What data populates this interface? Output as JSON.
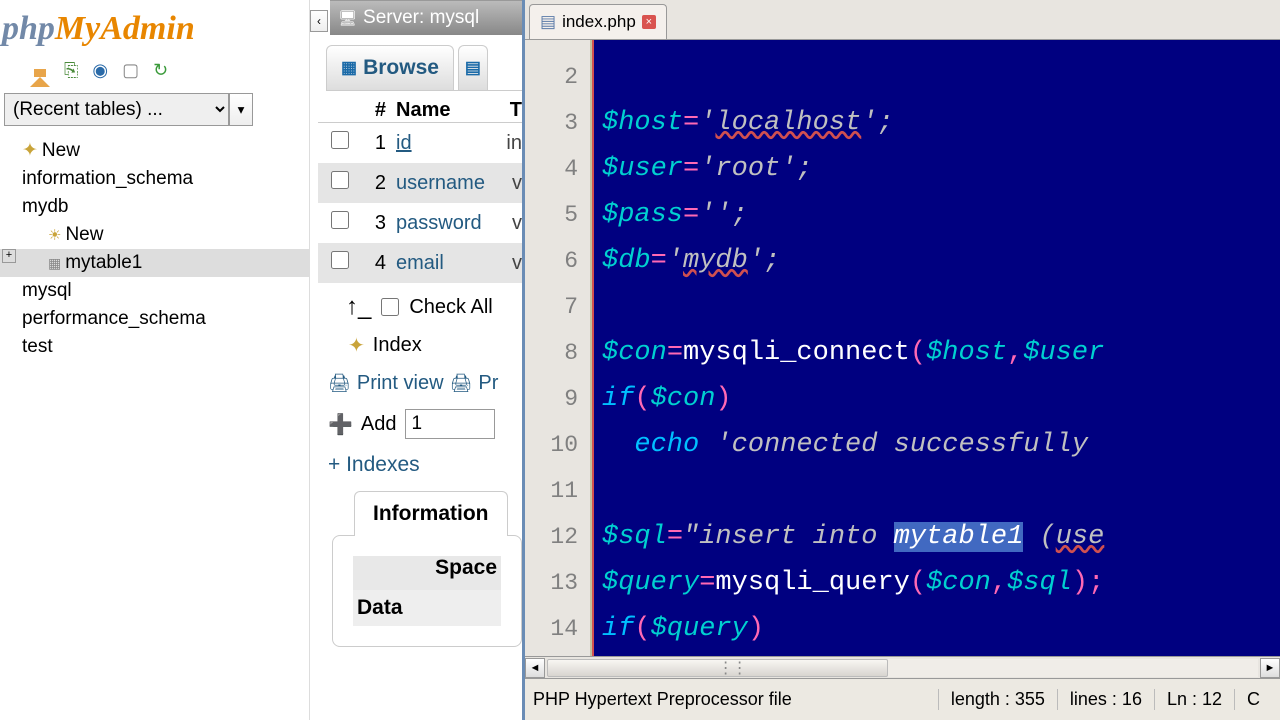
{
  "pma": {
    "logo": {
      "php": "php",
      "my": "My",
      "admin": "Admin"
    },
    "recent_placeholder": "(Recent tables) ...",
    "tree": [
      {
        "label": "New",
        "kind": "new"
      },
      {
        "label": "information_schema"
      },
      {
        "label": "mydb",
        "expanded": true,
        "children": [
          {
            "label": "New",
            "kind": "new"
          },
          {
            "label": "mytable1",
            "selected": true
          }
        ]
      },
      {
        "label": "mysql"
      },
      {
        "label": "performance_schema"
      },
      {
        "label": "test"
      }
    ]
  },
  "main": {
    "server_label": "Server: mysql",
    "tab_browse": "Browse",
    "cols": {
      "num": "#",
      "name": "Name",
      "type": "T"
    },
    "rows": [
      {
        "num": "1",
        "name": "id",
        "type": "in",
        "pk": true
      },
      {
        "num": "2",
        "name": "username",
        "type": "v"
      },
      {
        "num": "3",
        "name": "password",
        "type": "v"
      },
      {
        "num": "4",
        "name": "email",
        "type": "v"
      }
    ],
    "check_all": "Check All",
    "index": "Index",
    "print_view": "Print view",
    "print2": "Pr",
    "add": "Add",
    "add_value": "1",
    "indexes": "+ Indexes",
    "information": "Information",
    "space": "Space",
    "data": "Data"
  },
  "editor": {
    "tab_file": "index.php",
    "gutter": [
      "2",
      "3",
      "4",
      "5",
      "6",
      "7",
      "8",
      "9",
      "10",
      "11",
      "12",
      "13",
      "14"
    ],
    "code_lines": [
      {
        "tokens": []
      },
      {
        "tokens": [
          {
            "t": "$host",
            "c": "var"
          },
          {
            "t": "=",
            "c": "op"
          },
          {
            "t": "'",
            "c": "str"
          },
          {
            "t": "localhost",
            "c": "str str-underline"
          },
          {
            "t": "';",
            "c": "str"
          }
        ]
      },
      {
        "tokens": [
          {
            "t": "$user",
            "c": "var"
          },
          {
            "t": "=",
            "c": "op"
          },
          {
            "t": "'root';",
            "c": "str"
          }
        ]
      },
      {
        "tokens": [
          {
            "t": "$pass",
            "c": "var"
          },
          {
            "t": "=",
            "c": "op"
          },
          {
            "t": "'';",
            "c": "str"
          }
        ]
      },
      {
        "tokens": [
          {
            "t": "$db",
            "c": "var"
          },
          {
            "t": "=",
            "c": "op"
          },
          {
            "t": "'",
            "c": "str"
          },
          {
            "t": "mydb",
            "c": "str str-underline"
          },
          {
            "t": "';",
            "c": "str"
          }
        ]
      },
      {
        "tokens": []
      },
      {
        "tokens": [
          {
            "t": "$con",
            "c": "var"
          },
          {
            "t": "=",
            "c": "op"
          },
          {
            "t": "mysqli_connect",
            "c": "fn"
          },
          {
            "t": "(",
            "c": "op"
          },
          {
            "t": "$host",
            "c": "var"
          },
          {
            "t": ",",
            "c": "op"
          },
          {
            "t": "$user",
            "c": "var"
          }
        ]
      },
      {
        "tokens": [
          {
            "t": "if",
            "c": "kw"
          },
          {
            "t": "(",
            "c": "op"
          },
          {
            "t": "$con",
            "c": "var"
          },
          {
            "t": ")",
            "c": "op"
          }
        ]
      },
      {
        "tokens": [
          {
            "t": "  ",
            "c": ""
          },
          {
            "t": "echo",
            "c": "kw"
          },
          {
            "t": " 'connected successfully",
            "c": "str"
          }
        ]
      },
      {
        "tokens": []
      },
      {
        "tokens": [
          {
            "t": "$sql",
            "c": "var"
          },
          {
            "t": "=",
            "c": "op"
          },
          {
            "t": "\"insert into ",
            "c": "str"
          },
          {
            "t": "mytable1",
            "c": "sel"
          },
          {
            "t": " (",
            "c": "str"
          },
          {
            "t": "use",
            "c": "str str-underline"
          }
        ]
      },
      {
        "tokens": [
          {
            "t": "$query",
            "c": "var"
          },
          {
            "t": "=",
            "c": "op"
          },
          {
            "t": "mysqli_query",
            "c": "fn"
          },
          {
            "t": "(",
            "c": "op"
          },
          {
            "t": "$con",
            "c": "var"
          },
          {
            "t": ",",
            "c": "op"
          },
          {
            "t": "$sql",
            "c": "var"
          },
          {
            "t": ");",
            "c": "op"
          }
        ]
      },
      {
        "tokens": [
          {
            "t": "if",
            "c": "kw"
          },
          {
            "t": "(",
            "c": "op"
          },
          {
            "t": "$query",
            "c": "var"
          },
          {
            "t": ")",
            "c": "op"
          }
        ]
      }
    ],
    "status": {
      "left": "PHP Hypertext Preprocessor file",
      "length": "length : 355",
      "lines": "lines : 16",
      "ln": "Ln : 12",
      "col": "C"
    }
  }
}
